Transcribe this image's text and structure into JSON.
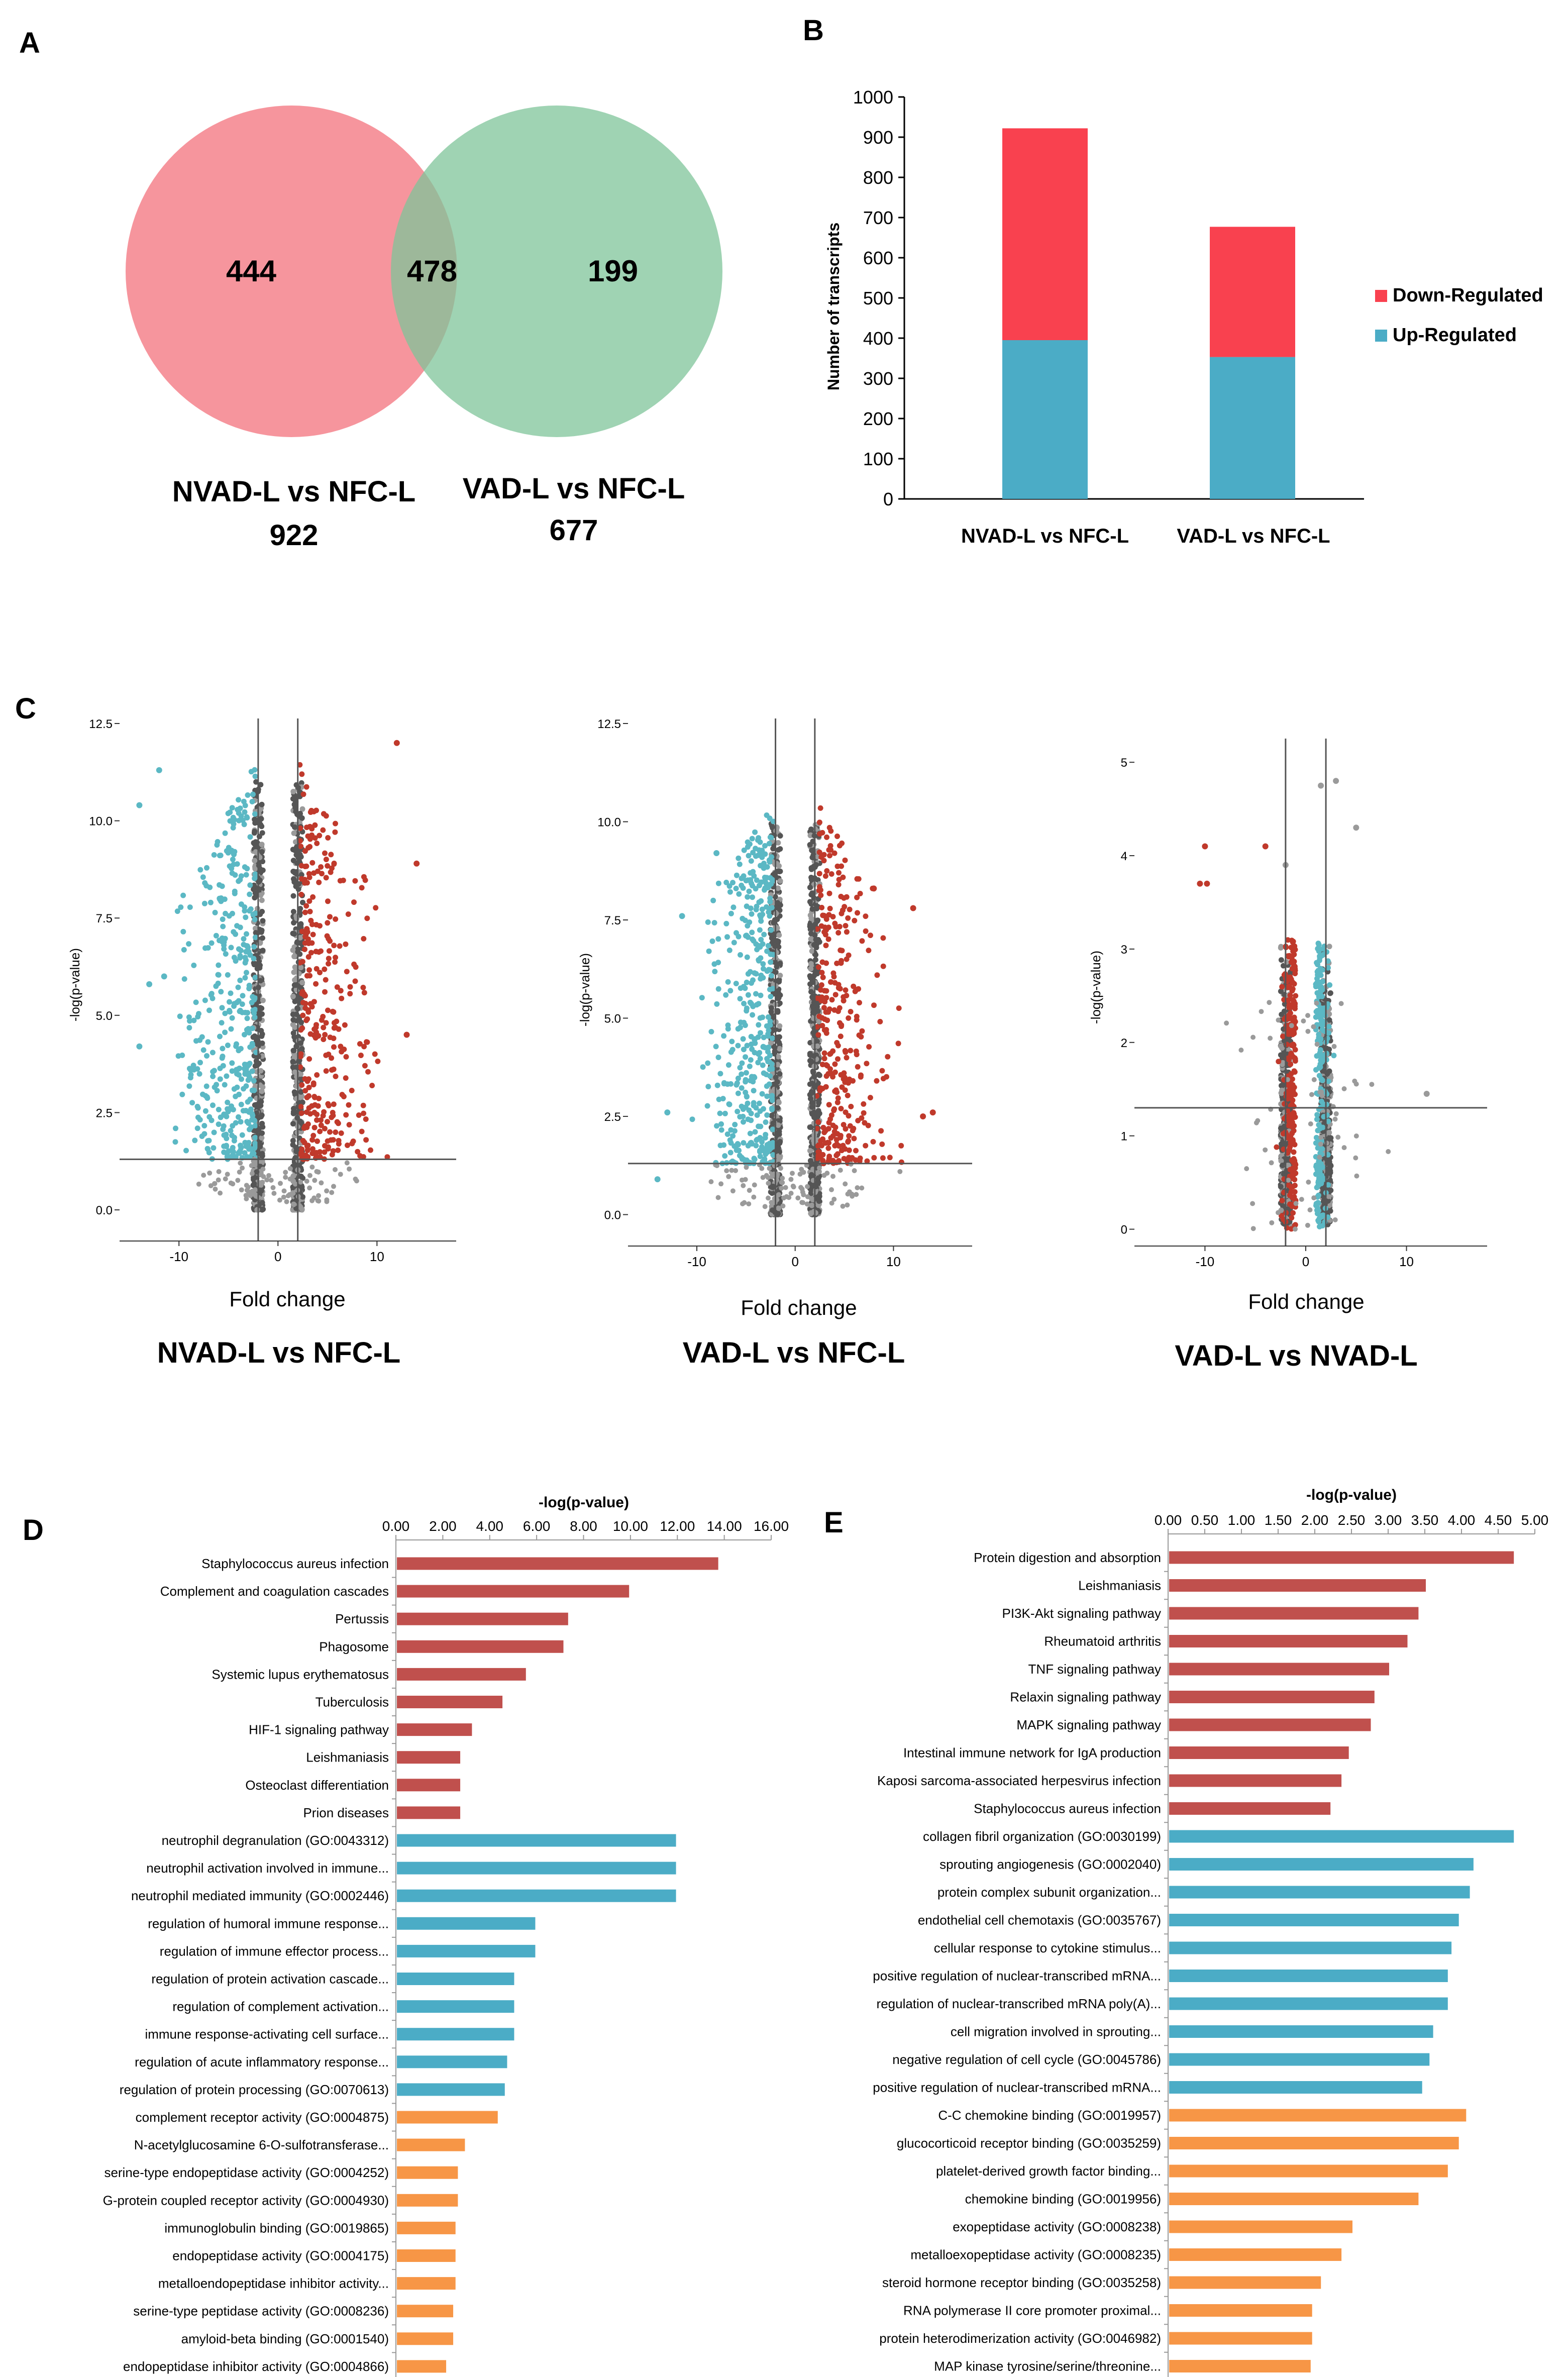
{
  "panels": {
    "a": "A",
    "b": "B",
    "c": "C",
    "d": "D",
    "e": "E"
  },
  "chart_data": [
    {
      "id": "A",
      "type": "venn",
      "sets": [
        {
          "name": "NVAD-L vs NFC-L",
          "total": 922,
          "only": 444,
          "color": "#f4828c"
        },
        {
          "name": "VAD-L vs NFC-L",
          "total": 677,
          "only": 199,
          "color": "#7fc49a"
        }
      ],
      "overlap": 478
    },
    {
      "id": "B",
      "type": "bar",
      "stacked": true,
      "categories": [
        "NVAD-L vs NFC-L",
        "VAD-L vs NFC-L"
      ],
      "series": [
        {
          "name": "Up-Regulated",
          "color": "#4bacc6",
          "values": [
            395,
            353
          ]
        },
        {
          "name": "Down-Regulated",
          "color": "#f9414f",
          "values": [
            527,
            324
          ]
        }
      ],
      "ylabel": "Number of transcripts",
      "ylim": [
        0,
        1000
      ],
      "yticks": [
        0,
        100,
        200,
        300,
        400,
        500,
        600,
        700,
        800,
        900,
        1000
      ],
      "legend": "right"
    },
    {
      "id": "C1",
      "type": "scatter",
      "title": "NVAD-L vs NFC-L",
      "xlabel": "Fold change",
      "ylabel": "-log(p-value)",
      "xlim": [
        -16,
        18
      ],
      "ylim": [
        -0.8,
        12.5
      ],
      "xticks": [
        "-10",
        "0",
        "10"
      ],
      "yticks": [
        "0.0",
        "2.5",
        "5.0",
        "7.5",
        "10.0",
        "12.5"
      ],
      "xtick_values": [
        -10,
        0,
        10
      ],
      "ytick_values": [
        0,
        2.5,
        5,
        7.5,
        10,
        12.5
      ],
      "vlines": [
        -2,
        2
      ],
      "hline": 1.3
    },
    {
      "id": "C2",
      "type": "scatter",
      "title": "VAD-L vs NFC-L",
      "xlabel": "Fold change",
      "ylabel": "-log(p-value)",
      "xlim": [
        -17,
        18
      ],
      "ylim": [
        -0.8,
        12.5
      ],
      "xticks": [
        "-10",
        "0",
        "10"
      ],
      "yticks": [
        "0.0",
        "2.5",
        "5.0",
        "7.5",
        "10.0",
        "12.5"
      ],
      "xtick_values": [
        -10,
        0,
        10
      ],
      "ytick_values": [
        0,
        2.5,
        5,
        7.5,
        10,
        12.5
      ],
      "vlines": [
        -2,
        2
      ],
      "hline": 1.3
    },
    {
      "id": "C3",
      "type": "scatter",
      "title": "VAD-L vs NVAD-L",
      "xlabel": "Fold change",
      "ylabel": "-log(p-value)",
      "xlim": [
        -17,
        18
      ],
      "ylim": [
        -0.18,
        5.2
      ],
      "xticks": [
        "-10",
        "0",
        "10"
      ],
      "yticks": [
        "0",
        "1",
        "2",
        "3",
        "4",
        "5"
      ],
      "xtick_values": [
        -10,
        0,
        10
      ],
      "ytick_values": [
        0,
        1,
        2,
        3,
        4,
        5
      ],
      "vlines": [
        -2,
        2
      ],
      "hline": 1.3
    },
    {
      "id": "D",
      "type": "bar",
      "orientation": "horizontal",
      "xlabel": "-log(p-value)",
      "xlim": [
        0,
        16
      ],
      "xticks": [
        "0.00",
        "2.00",
        "4.00",
        "6.00",
        "8.00",
        "10.00",
        "12.00",
        "14.00",
        "16.00"
      ],
      "categories": [
        "Staphylococcus aureus infection",
        "Complement and coagulation cascades",
        "Pertussis",
        "Phagosome",
        "Systemic lupus erythematosus",
        "Tuberculosis",
        "HIF-1 signaling pathway",
        "Leishmaniasis",
        "Osteoclast differentiation",
        "Prion diseases",
        "neutrophil degranulation (GO:0043312)",
        "neutrophil activation involved in immune...",
        "neutrophil mediated immunity (GO:0002446)",
        "regulation of humoral immune response...",
        "regulation of immune effector process...",
        "regulation of protein activation cascade...",
        "regulation of complement activation...",
        "immune response-activating cell surface...",
        "regulation of acute inflammatory response...",
        "regulation of protein processing (GO:0070613)",
        "complement receptor activity (GO:0004875)",
        "N-acetylglucosamine 6-O-sulfotransferase...",
        "serine-type endopeptidase activity (GO:0004252)",
        "G-protein coupled receptor activity (GO:0004930)",
        "immunoglobulin binding (GO:0019865)",
        "endopeptidase activity (GO:0004175)",
        "metalloendopeptidase inhibitor activity...",
        "serine-type peptidase activity (GO:0008236)",
        "amyloid-beta binding (GO:0001540)",
        "endopeptidase inhibitor activity (GO:0004866)"
      ],
      "values": [
        13.7,
        9.9,
        7.3,
        7.1,
        5.5,
        4.5,
        3.2,
        2.7,
        2.7,
        2.7,
        11.9,
        11.9,
        11.9,
        5.9,
        5.9,
        5.0,
        5.0,
        5.0,
        4.7,
        4.6,
        4.3,
        2.9,
        2.6,
        2.6,
        2.5,
        2.5,
        2.5,
        2.4,
        2.4,
        2.1
      ],
      "groups": [
        10,
        10,
        10
      ],
      "group_colors": [
        "#c0504d",
        "#4bacc6",
        "#f79646"
      ]
    },
    {
      "id": "E",
      "type": "bar",
      "orientation": "horizontal",
      "xlabel": "-log(p-value)",
      "xlim": [
        0,
        5
      ],
      "xticks": [
        "0.00",
        "0.50",
        "1.00",
        "1.50",
        "2.00",
        "2.50",
        "3.00",
        "3.50",
        "4.00",
        "4.50",
        "5.00"
      ],
      "categories": [
        "Protein digestion and absorption",
        "Leishmaniasis",
        "PI3K-Akt signaling pathway",
        "Rheumatoid arthritis",
        "TNF signaling pathway",
        "Relaxin signaling pathway",
        "MAPK signaling pathway",
        "Intestinal immune network for IgA production",
        "Kaposi sarcoma-associated herpesvirus infection",
        "Staphylococcus aureus infection",
        "collagen fibril organization (GO:0030199)",
        "sprouting angiogenesis (GO:0002040)",
        "protein complex subunit organization...",
        "endothelial cell chemotaxis (GO:0035767)",
        "cellular response to cytokine stimulus...",
        "positive regulation of nuclear-transcribed mRNA...",
        "regulation of nuclear-transcribed mRNA poly(A)...",
        "cell migration involved in sprouting...",
        "negative regulation of cell cycle (GO:0045786)",
        "positive regulation of nuclear-transcribed mRNA...",
        "C-C chemokine binding (GO:0019957)",
        "glucocorticoid receptor binding (GO:0035259)",
        "platelet-derived growth factor binding...",
        "chemokine binding (GO:0019956)",
        "exopeptidase activity (GO:0008238)",
        "metalloexopeptidase activity (GO:0008235)",
        "steroid hormone receptor binding (GO:0035258)",
        "RNA polymerase II core promoter proximal...",
        "protein heterodimerization activity (GO:0046982)",
        "MAP kinase tyrosine/serine/threonine..."
      ],
      "values": [
        4.7,
        3.5,
        3.4,
        3.25,
        3.0,
        2.8,
        2.75,
        2.45,
        2.35,
        2.2,
        4.7,
        4.15,
        4.1,
        3.95,
        3.85,
        3.8,
        3.8,
        3.6,
        3.55,
        3.45,
        4.05,
        3.95,
        3.8,
        3.4,
        2.5,
        2.35,
        2.07,
        1.95,
        1.95,
        1.93
      ],
      "groups": [
        10,
        10,
        10
      ],
      "group_colors": [
        "#c0504d",
        "#4bacc6",
        "#f79646"
      ]
    }
  ]
}
